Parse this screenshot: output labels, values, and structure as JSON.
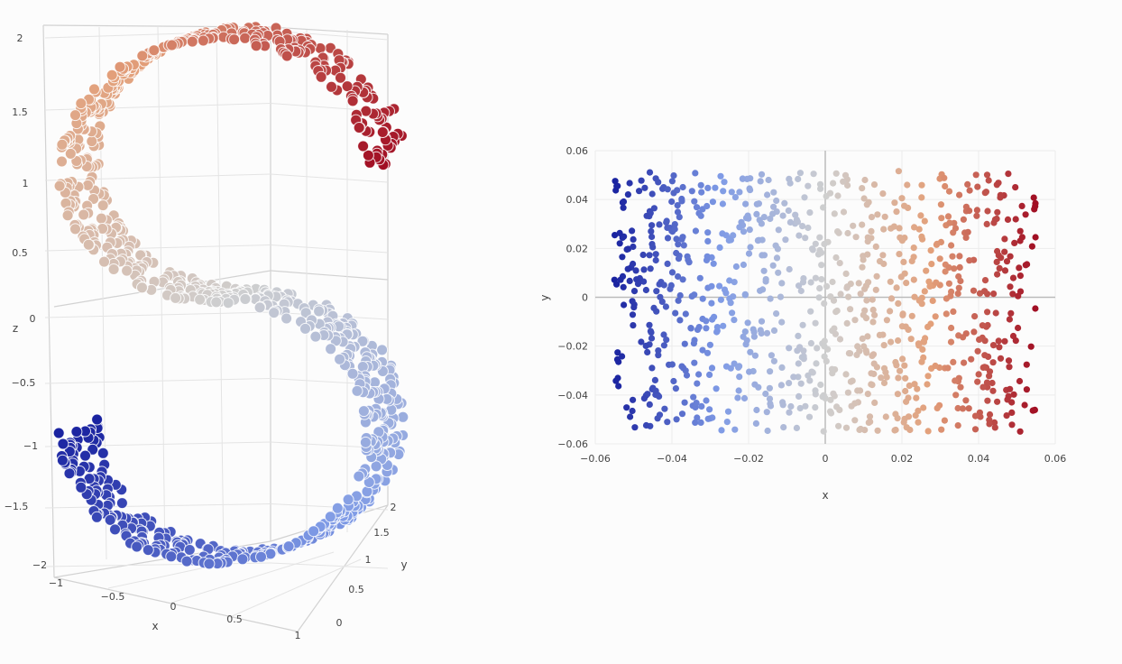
{
  "chart_data": [
    {
      "type": "scatter3d",
      "x_title": "x",
      "y_title": "y",
      "z_title": "z",
      "x_ticks": [
        "−1",
        "−0.5",
        "0",
        "0.5",
        "1"
      ],
      "y_ticks": [
        "0",
        "0.5",
        "1",
        "1.5",
        "2"
      ],
      "z_ticks": [
        "2",
        "1.5",
        "1",
        "0.5",
        "0",
        "−0.5",
        "−1",
        "−1.5",
        "−2"
      ],
      "xlim": [
        -1,
        1
      ],
      "ylim": [
        0,
        2
      ],
      "zlim": [
        -2,
        2
      ],
      "grid": true,
      "color_scale": [
        "#1a23a0",
        "#7f9be6",
        "#cfcfcf",
        "#e3a07a",
        "#a10e23"
      ],
      "point_count": 900,
      "description_curve": "S-shaped 3D manifold; points colored by position along the curve"
    },
    {
      "type": "scatter",
      "xlabel": "x",
      "ylabel": "y",
      "x_ticks": [
        "−0.06",
        "−0.04",
        "−0.02",
        "0",
        "0.02",
        "0.04",
        "0.06"
      ],
      "y_ticks": [
        "0.06",
        "0.04",
        "0.02",
        "0",
        "−0.02",
        "−0.04",
        "−0.06"
      ],
      "xlim": [
        -0.06,
        0.06
      ],
      "ylim": [
        -0.06,
        0.06
      ],
      "points_x_range": [
        -0.055,
        0.055
      ],
      "points_y_range": [
        -0.055,
        0.052
      ],
      "grid": true,
      "color_scale": [
        "#1a23a0",
        "#7f9be6",
        "#cfcfcf",
        "#e3a07a",
        "#a10e23"
      ],
      "point_count": 900
    }
  ]
}
